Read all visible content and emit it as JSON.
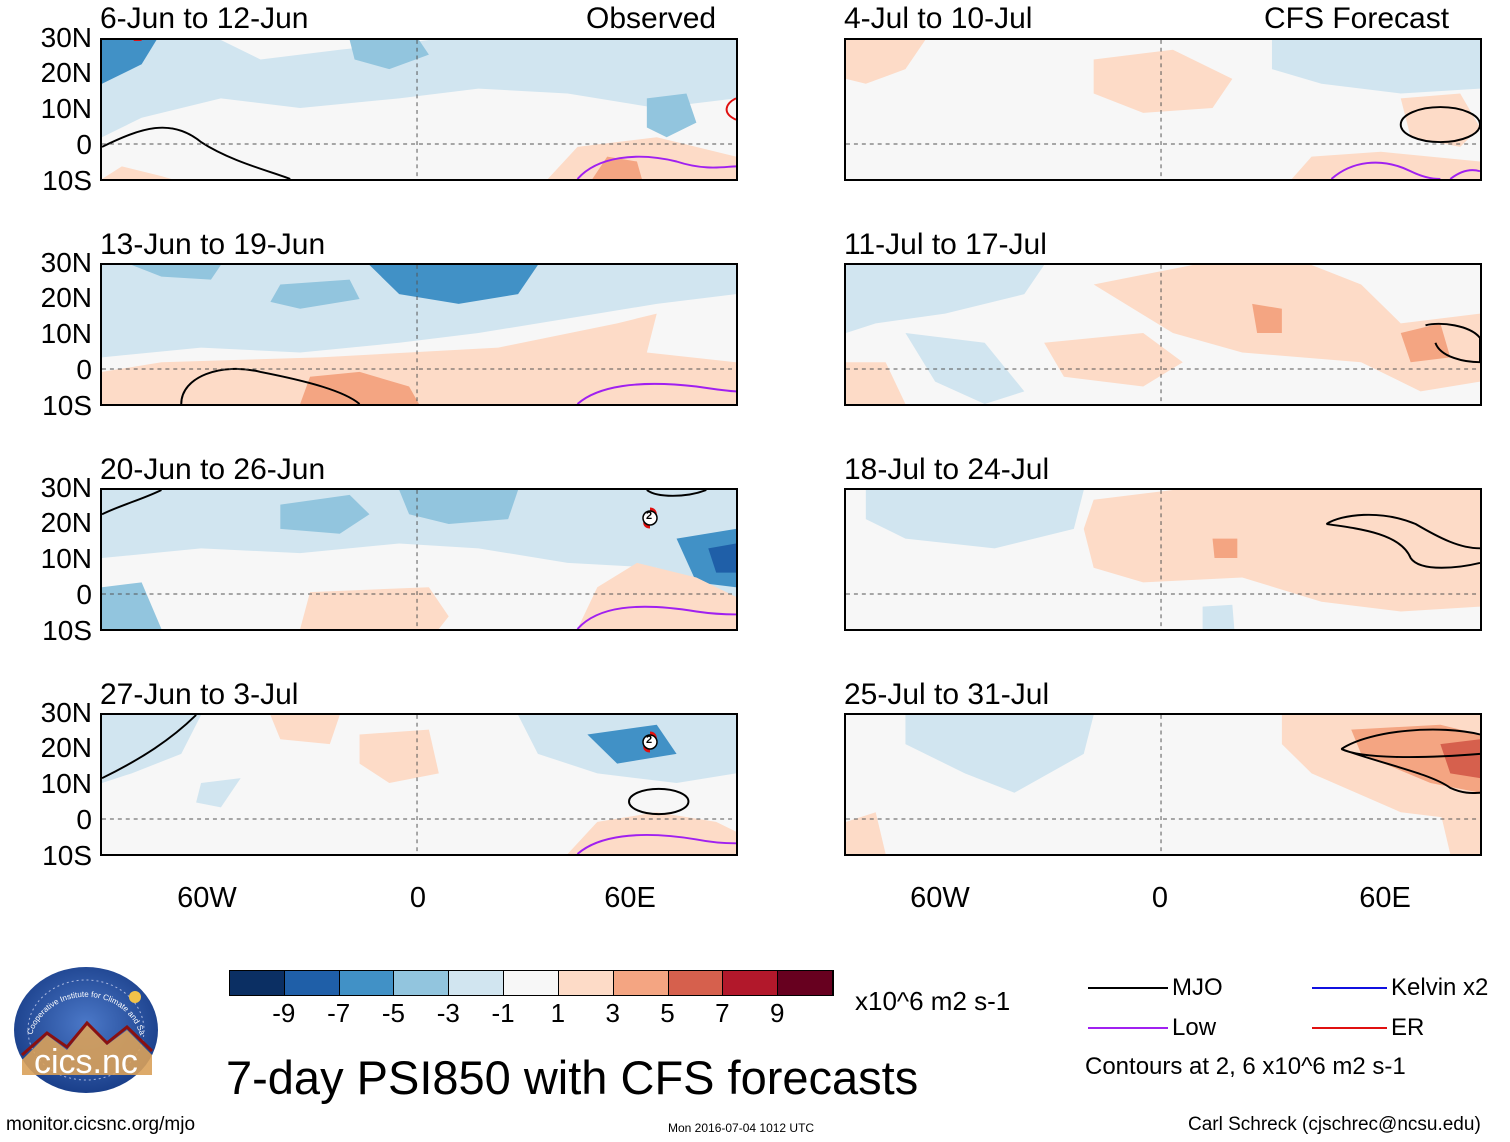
{
  "panels": [
    {
      "title": "6-Jun to 12-Jun",
      "label": "Observed",
      "column": "left",
      "row": 1
    },
    {
      "title": "13-Jun to 19-Jun",
      "label": "",
      "column": "left",
      "row": 2
    },
    {
      "title": "20-Jun to 26-Jun",
      "label": "",
      "column": "left",
      "row": 3
    },
    {
      "title": "27-Jun to 3-Jul",
      "label": "",
      "column": "left",
      "row": 4
    },
    {
      "title": "4-Jul to 10-Jul",
      "label": "CFS Forecast",
      "column": "right",
      "row": 1
    },
    {
      "title": "11-Jul to 17-Jul",
      "label": "",
      "column": "right",
      "row": 2
    },
    {
      "title": "18-Jul to 24-Jul",
      "label": "",
      "column": "right",
      "row": 3
    },
    {
      "title": "25-Jul to 31-Jul",
      "label": "",
      "column": "right",
      "row": 4
    }
  ],
  "lat_labels": [
    "30N",
    "20N",
    "10N",
    "0",
    "10S"
  ],
  "lon_labels": [
    "60W",
    "0",
    "60E"
  ],
  "colorbar": {
    "ticks": [
      "-9",
      "-7",
      "-5",
      "-3",
      "-1",
      "1",
      "3",
      "5",
      "7",
      "9"
    ],
    "units": "x10^6 m2 s-1",
    "colors": [
      "#0b2f63",
      "#1f5fa8",
      "#4191c6",
      "#92c5de",
      "#d1e5f0",
      "#f7f7f7",
      "#fddbc7",
      "#f4a582",
      "#d6604d",
      "#b2182b",
      "#67001f"
    ]
  },
  "legend": {
    "items": [
      {
        "label": "MJO",
        "color": "#000000"
      },
      {
        "label": "Kelvin x2",
        "color": "#1010e0"
      },
      {
        "label": "Low",
        "color": "#a020f0"
      },
      {
        "label": "ER",
        "color": "#e01010"
      }
    ],
    "contours_note": "Contours at 2, 6 x10^6 m2 s-1"
  },
  "main_title": "7-day PSI850 with CFS forecasts",
  "logo_text": "cics.nc",
  "logo_ring_text": "Cooperative Institute for Climate and Satellites",
  "footer": {
    "url": "monitor.cicsnc.org/mjo",
    "timestamp": "Mon 2016-07-04 1012 UTC",
    "author": "Carl Schreck (cjschrec@ncsu.edu)"
  },
  "tc_marker": "2"
}
